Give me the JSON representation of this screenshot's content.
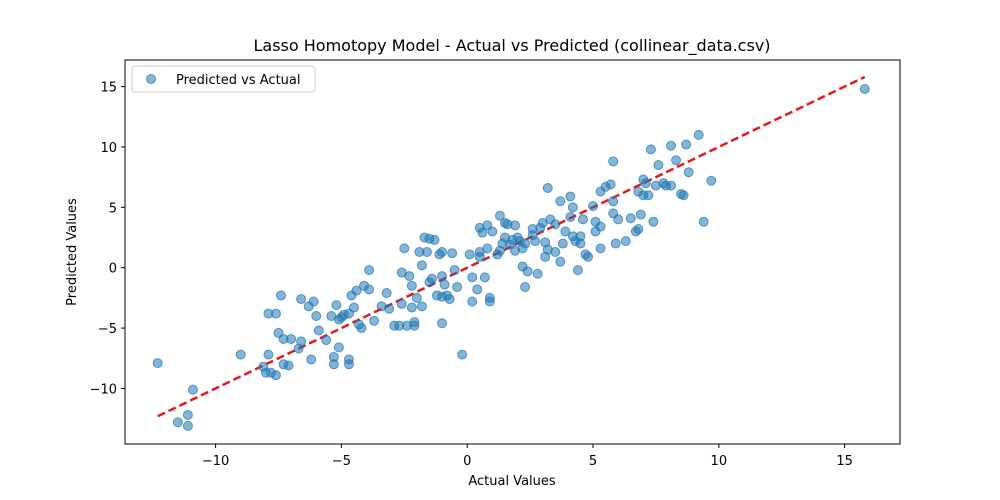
{
  "chart_data": {
    "type": "scatter",
    "title": "Lasso Homotopy Model - Actual vs Predicted (collinear_data.csv)",
    "xlabel": "Actual Values",
    "ylabel": "Predicted Values",
    "xlim": [
      -13.6,
      17.2
    ],
    "ylim": [
      -14.6,
      17.2
    ],
    "xticks": [
      -10,
      -5,
      0,
      5,
      10,
      15
    ],
    "yticks": [
      -10,
      -5,
      0,
      5,
      10,
      15
    ],
    "xtick_labels": [
      "−10",
      "−5",
      "0",
      "5",
      "10",
      "15"
    ],
    "ytick_labels": [
      "−10",
      "−5",
      "0",
      "5",
      "10",
      "15"
    ],
    "grid": false,
    "legend": {
      "placement": "top-left",
      "entries": [
        "Predicted vs Actual"
      ]
    },
    "series": [
      {
        "name": "Predicted vs Actual",
        "kind": "scatter",
        "color": "#1f77b4",
        "opacity": 0.55,
        "points": [
          [
            -12.3,
            -7.9
          ],
          [
            -11.5,
            -12.8
          ],
          [
            -11.1,
            -12.2
          ],
          [
            -11.1,
            -13.1
          ],
          [
            -10.9,
            -10.1
          ],
          [
            -9.0,
            -7.2
          ],
          [
            -8.1,
            -8.2
          ],
          [
            -8.0,
            -8.7
          ],
          [
            -7.9,
            -7.2
          ],
          [
            -7.8,
            -8.7
          ],
          [
            -7.6,
            -8.9
          ],
          [
            -7.5,
            -5.4
          ],
          [
            -7.3,
            -5.9
          ],
          [
            -7.3,
            -8.0
          ],
          [
            -7.1,
            -8.1
          ],
          [
            -7.0,
            -5.9
          ],
          [
            -6.7,
            -6.7
          ],
          [
            -6.6,
            -6.1
          ],
          [
            -6.2,
            -7.6
          ],
          [
            -5.9,
            -5.2
          ],
          [
            -5.6,
            -6.0
          ],
          [
            -5.3,
            -7.4
          ],
          [
            -5.3,
            -8.0
          ],
          [
            -5.1,
            -6.6
          ],
          [
            -4.7,
            -7.6
          ],
          [
            -4.7,
            -8.0
          ],
          [
            -7.9,
            -3.8
          ],
          [
            -7.6,
            -3.8
          ],
          [
            -7.4,
            -2.3
          ],
          [
            -6.6,
            -2.6
          ],
          [
            -6.3,
            -3.2
          ],
          [
            -6.1,
            -2.8
          ],
          [
            -6.0,
            -4.0
          ],
          [
            -5.4,
            -4.0
          ],
          [
            -5.2,
            -3.1
          ],
          [
            -5.1,
            -4.3
          ],
          [
            -5.0,
            -4.1
          ],
          [
            -4.9,
            -3.9
          ],
          [
            -4.7,
            -3.8
          ],
          [
            -4.5,
            -3.3
          ],
          [
            -4.6,
            -2.3
          ],
          [
            -4.4,
            -1.9
          ],
          [
            -4.3,
            -4.7
          ],
          [
            -4.1,
            -1.5
          ],
          [
            -4.2,
            -5.0
          ],
          [
            -3.9,
            -1.8
          ],
          [
            -3.9,
            -0.2
          ],
          [
            -3.7,
            -4.4
          ],
          [
            -3.4,
            -3.2
          ],
          [
            -3.2,
            -2.1
          ],
          [
            -3.1,
            -3.4
          ],
          [
            -2.9,
            -4.8
          ],
          [
            -2.7,
            -4.8
          ],
          [
            -2.6,
            -3.0
          ],
          [
            -2.6,
            -0.4
          ],
          [
            -2.5,
            1.6
          ],
          [
            -2.4,
            -4.8
          ],
          [
            -2.3,
            -0.7
          ],
          [
            -2.2,
            -1.5
          ],
          [
            -2.2,
            -3.3
          ],
          [
            -2.1,
            -4.5
          ],
          [
            -2.1,
            -4.8
          ],
          [
            -2.0,
            -2.5
          ],
          [
            -1.9,
            1.3
          ],
          [
            -1.8,
            0.2
          ],
          [
            -1.8,
            -3.2
          ],
          [
            -1.7,
            2.5
          ],
          [
            -1.6,
            1.3
          ],
          [
            -1.5,
            -1.2
          ],
          [
            -1.5,
            2.4
          ],
          [
            -1.4,
            -0.9
          ],
          [
            -1.3,
            2.3
          ],
          [
            -1.2,
            -2.3
          ],
          [
            -1.1,
            1.1
          ],
          [
            -1.0,
            1.3
          ],
          [
            -1.0,
            -0.7
          ],
          [
            -1.0,
            -2.4
          ],
          [
            -1.0,
            -4.6
          ],
          [
            -0.9,
            -1.4
          ],
          [
            -0.8,
            -2.3
          ],
          [
            -0.7,
            -2.6
          ],
          [
            -0.6,
            1.2
          ],
          [
            -0.5,
            -0.2
          ],
          [
            -0.4,
            -1.6
          ],
          [
            -0.2,
            -7.2
          ],
          [
            0.1,
            1.1
          ],
          [
            0.2,
            -2.8
          ],
          [
            0.2,
            -0.8
          ],
          [
            0.4,
            -1.8
          ],
          [
            0.5,
            0.9
          ],
          [
            0.5,
            1.3
          ],
          [
            0.5,
            3.3
          ],
          [
            0.6,
            2.9
          ],
          [
            0.7,
            -0.8
          ],
          [
            0.8,
            1.6
          ],
          [
            0.8,
            3.5
          ],
          [
            0.9,
            -2.5
          ],
          [
            0.9,
            -2.8
          ],
          [
            1.0,
            3.0
          ],
          [
            1.2,
            1.1
          ],
          [
            1.3,
            1.4
          ],
          [
            1.3,
            4.3
          ],
          [
            1.4,
            2.0
          ],
          [
            1.5,
            2.5
          ],
          [
            1.5,
            3.7
          ],
          [
            1.6,
            3.6
          ],
          [
            1.7,
            1.9
          ],
          [
            1.8,
            2.3
          ],
          [
            1.9,
            3.5
          ],
          [
            1.9,
            1.4
          ],
          [
            2.0,
            2.5
          ],
          [
            2.1,
            2.2
          ],
          [
            2.2,
            1.6
          ],
          [
            2.2,
            0.1
          ],
          [
            2.3,
            2.0
          ],
          [
            2.3,
            -1.6
          ],
          [
            2.4,
            -0.3
          ],
          [
            2.6,
            3.2
          ],
          [
            2.6,
            2.7
          ],
          [
            2.7,
            2.2
          ],
          [
            2.8,
            -0.5
          ],
          [
            2.9,
            3.3
          ],
          [
            3.0,
            3.7
          ],
          [
            3.1,
            0.9
          ],
          [
            3.1,
            2.1
          ],
          [
            3.2,
            1.5
          ],
          [
            3.2,
            6.6
          ],
          [
            3.3,
            4.0
          ],
          [
            3.5,
            3.6
          ],
          [
            3.5,
            1.3
          ],
          [
            3.7,
            5.5
          ],
          [
            3.7,
            0.5
          ],
          [
            3.8,
            2.0
          ],
          [
            3.9,
            3.0
          ],
          [
            4.1,
            4.2
          ],
          [
            4.1,
            5.9
          ],
          [
            4.2,
            5.0
          ],
          [
            4.2,
            2.6
          ],
          [
            4.3,
            2.2
          ],
          [
            4.4,
            -0.2
          ],
          [
            4.5,
            2.6
          ],
          [
            4.5,
            2.0
          ],
          [
            4.6,
            4.0
          ],
          [
            4.7,
            1.1
          ],
          [
            4.8,
            0.9
          ],
          [
            5.0,
            5.1
          ],
          [
            5.1,
            3.8
          ],
          [
            5.1,
            3.0
          ],
          [
            5.3,
            3.4
          ],
          [
            5.3,
            6.3
          ],
          [
            5.3,
            1.6
          ],
          [
            5.5,
            6.7
          ],
          [
            5.7,
            6.9
          ],
          [
            5.8,
            5.5
          ],
          [
            5.8,
            4.5
          ],
          [
            5.9,
            2.0
          ],
          [
            6.0,
            4.0
          ],
          [
            6.3,
            2.2
          ],
          [
            6.5,
            4.1
          ],
          [
            6.7,
            3.0
          ],
          [
            6.8,
            3.2
          ],
          [
            6.8,
            6.3
          ],
          [
            6.9,
            4.4
          ],
          [
            7.0,
            6.0
          ],
          [
            7.0,
            7.3
          ],
          [
            7.1,
            7.0
          ],
          [
            7.2,
            6.0
          ],
          [
            7.3,
            9.8
          ],
          [
            7.4,
            3.8
          ],
          [
            7.5,
            6.8
          ],
          [
            7.6,
            8.5
          ],
          [
            7.8,
            7.0
          ],
          [
            8.1,
            10.1
          ],
          [
            8.1,
            6.8
          ],
          [
            8.3,
            8.9
          ],
          [
            8.5,
            6.1
          ],
          [
            8.6,
            6.0
          ],
          [
            8.7,
            10.2
          ],
          [
            8.8,
            7.9
          ],
          [
            9.2,
            11.0
          ],
          [
            9.4,
            3.8
          ],
          [
            9.7,
            7.2
          ],
          [
            7.9,
            6.8
          ],
          [
            5.8,
            8.8
          ],
          [
            15.8,
            14.8
          ]
        ]
      },
      {
        "name": "",
        "kind": "reference-line",
        "color": "#e31a1c",
        "dashed": true,
        "from": [
          -12.3,
          -12.3
        ],
        "to": [
          15.8,
          15.8
        ]
      }
    ]
  }
}
